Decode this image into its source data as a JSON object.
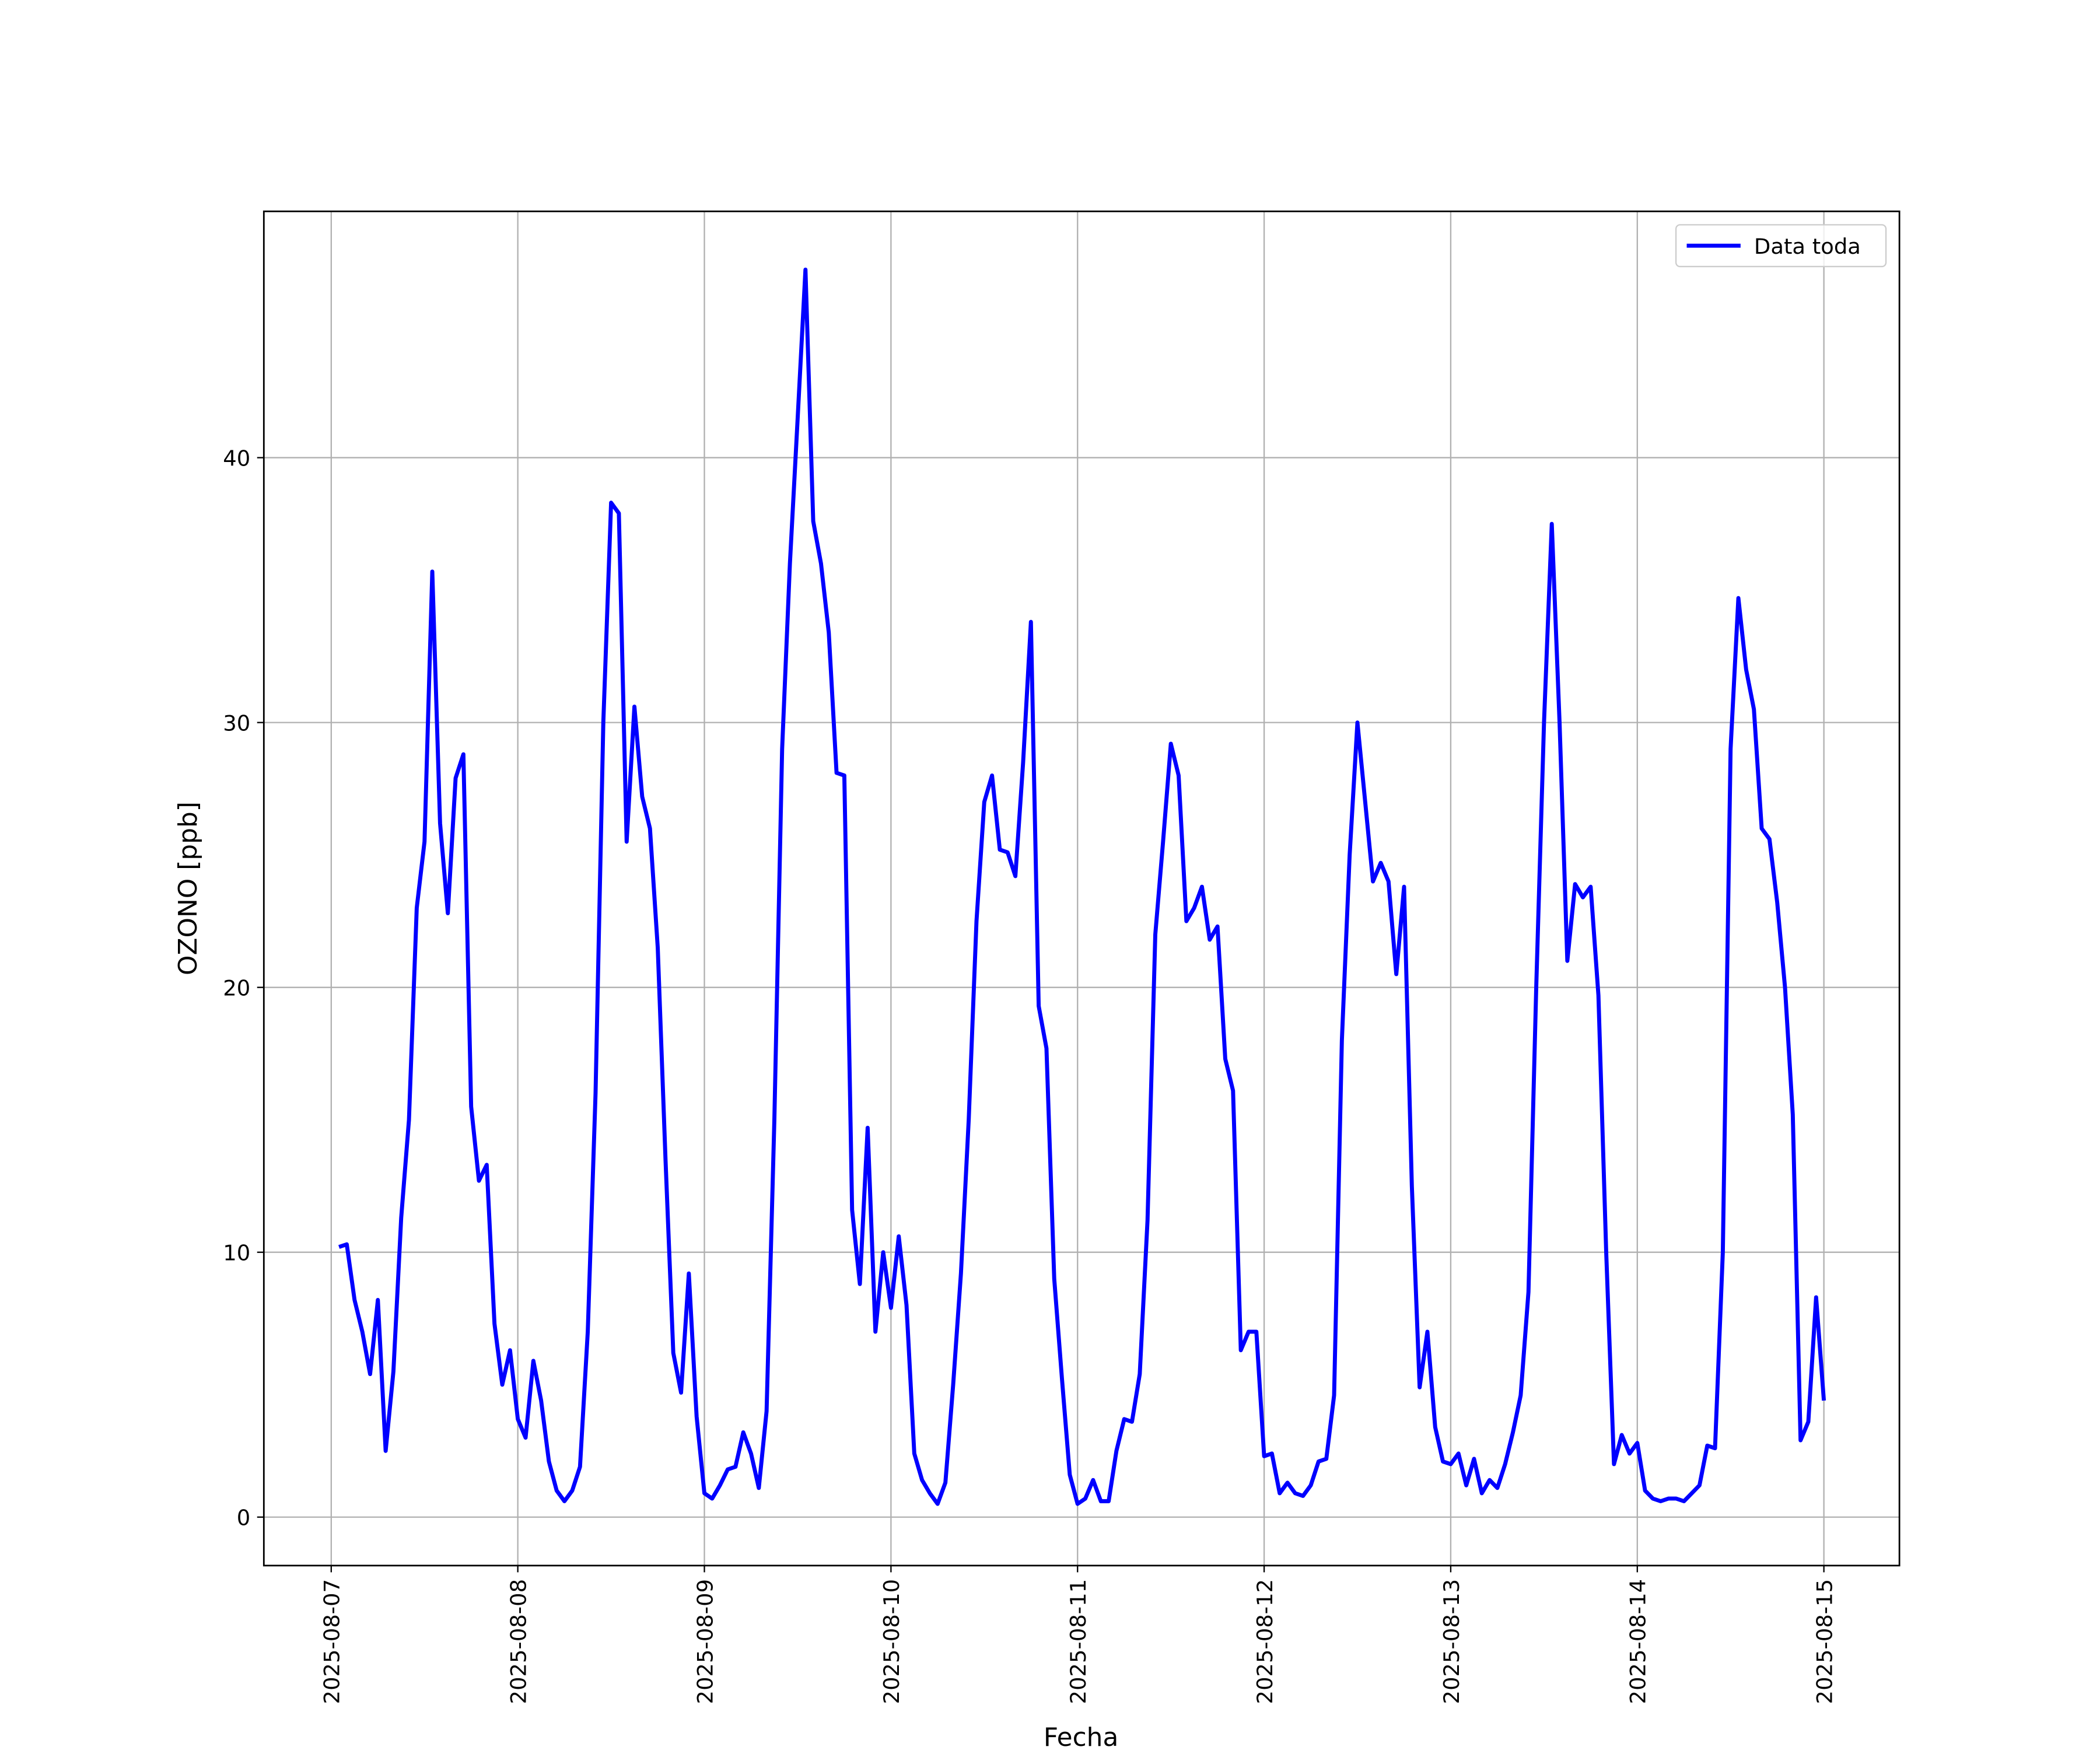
{
  "chart_data": {
    "type": "line",
    "xlabel": "Fecha",
    "ylabel": "OZONO [ppb]",
    "x": [
      "2025-08-07 01:00",
      "2025-08-07 02:00",
      "2025-08-07 03:00",
      "2025-08-07 04:00",
      "2025-08-07 05:00",
      "2025-08-07 06:00",
      "2025-08-07 07:00",
      "2025-08-07 08:00",
      "2025-08-07 09:00",
      "2025-08-07 10:00",
      "2025-08-07 11:00",
      "2025-08-07 12:00",
      "2025-08-07 13:00",
      "2025-08-07 14:00",
      "2025-08-07 15:00",
      "2025-08-07 16:00",
      "2025-08-07 17:00",
      "2025-08-07 18:00",
      "2025-08-07 19:00",
      "2025-08-07 20:00",
      "2025-08-07 21:00",
      "2025-08-07 22:00",
      "2025-08-07 23:00",
      "2025-08-08 00:00",
      "2025-08-08 01:00",
      "2025-08-08 02:00",
      "2025-08-08 03:00",
      "2025-08-08 04:00",
      "2025-08-08 05:00",
      "2025-08-08 06:00",
      "2025-08-08 07:00",
      "2025-08-08 08:00",
      "2025-08-08 09:00",
      "2025-08-08 10:00",
      "2025-08-08 11:00",
      "2025-08-08 12:00",
      "2025-08-08 13:00",
      "2025-08-08 14:00",
      "2025-08-08 15:00",
      "2025-08-08 16:00",
      "2025-08-08 17:00",
      "2025-08-08 18:00",
      "2025-08-08 19:00",
      "2025-08-08 20:00",
      "2025-08-08 21:00",
      "2025-08-08 22:00",
      "2025-08-08 23:00",
      "2025-08-09 00:00",
      "2025-08-09 01:00",
      "2025-08-09 02:00",
      "2025-08-09 03:00",
      "2025-08-09 04:00",
      "2025-08-09 05:00",
      "2025-08-09 06:00",
      "2025-08-09 07:00",
      "2025-08-09 08:00",
      "2025-08-09 09:00",
      "2025-08-09 10:00",
      "2025-08-09 11:00",
      "2025-08-09 12:00",
      "2025-08-09 13:00",
      "2025-08-09 14:00",
      "2025-08-09 15:00",
      "2025-08-09 16:00",
      "2025-08-09 17:00",
      "2025-08-09 18:00",
      "2025-08-09 19:00",
      "2025-08-09 20:00",
      "2025-08-09 21:00",
      "2025-08-09 22:00",
      "2025-08-09 23:00",
      "2025-08-10 00:00",
      "2025-08-10 01:00",
      "2025-08-10 02:00",
      "2025-08-10 03:00",
      "2025-08-10 04:00",
      "2025-08-10 05:00",
      "2025-08-10 06:00",
      "2025-08-10 07:00",
      "2025-08-10 08:00",
      "2025-08-10 09:00",
      "2025-08-10 10:00",
      "2025-08-10 11:00",
      "2025-08-10 12:00",
      "2025-08-10 13:00",
      "2025-08-10 14:00",
      "2025-08-10 15:00",
      "2025-08-10 16:00",
      "2025-08-10 17:00",
      "2025-08-10 18:00",
      "2025-08-10 19:00",
      "2025-08-10 20:00",
      "2025-08-10 21:00",
      "2025-08-10 22:00",
      "2025-08-10 23:00",
      "2025-08-11 00:00",
      "2025-08-11 01:00",
      "2025-08-11 02:00",
      "2025-08-11 03:00",
      "2025-08-11 04:00",
      "2025-08-11 05:00",
      "2025-08-11 06:00",
      "2025-08-11 07:00",
      "2025-08-11 08:00",
      "2025-08-11 09:00",
      "2025-08-11 10:00",
      "2025-08-11 11:00",
      "2025-08-11 12:00",
      "2025-08-11 13:00",
      "2025-08-11 14:00",
      "2025-08-11 15:00",
      "2025-08-11 16:00",
      "2025-08-11 17:00",
      "2025-08-11 18:00",
      "2025-08-11 19:00",
      "2025-08-11 20:00",
      "2025-08-11 21:00",
      "2025-08-11 22:00",
      "2025-08-11 23:00",
      "2025-08-12 00:00",
      "2025-08-12 01:00",
      "2025-08-12 02:00",
      "2025-08-12 03:00",
      "2025-08-12 04:00",
      "2025-08-12 05:00",
      "2025-08-12 06:00",
      "2025-08-12 07:00",
      "2025-08-12 08:00",
      "2025-08-12 09:00",
      "2025-08-12 10:00",
      "2025-08-12 11:00",
      "2025-08-12 12:00",
      "2025-08-12 13:00",
      "2025-08-12 14:00",
      "2025-08-12 15:00",
      "2025-08-12 16:00",
      "2025-08-12 17:00",
      "2025-08-12 18:00",
      "2025-08-12 19:00",
      "2025-08-12 20:00",
      "2025-08-12 21:00",
      "2025-08-12 22:00",
      "2025-08-12 23:00",
      "2025-08-13 00:00",
      "2025-08-13 01:00",
      "2025-08-13 02:00",
      "2025-08-13 03:00",
      "2025-08-13 04:00",
      "2025-08-13 05:00",
      "2025-08-13 06:00",
      "2025-08-13 07:00",
      "2025-08-13 08:00",
      "2025-08-13 09:00",
      "2025-08-13 10:00",
      "2025-08-13 11:00",
      "2025-08-13 12:00",
      "2025-08-13 13:00",
      "2025-08-13 14:00",
      "2025-08-13 15:00",
      "2025-08-13 16:00",
      "2025-08-13 17:00",
      "2025-08-13 18:00",
      "2025-08-13 19:00",
      "2025-08-13 20:00",
      "2025-08-13 21:00",
      "2025-08-13 22:00",
      "2025-08-13 23:00",
      "2025-08-14 00:00",
      "2025-08-14 01:00",
      "2025-08-14 02:00",
      "2025-08-14 03:00",
      "2025-08-14 04:00",
      "2025-08-14 05:00",
      "2025-08-14 06:00",
      "2025-08-14 07:00",
      "2025-08-14 08:00",
      "2025-08-14 09:00",
      "2025-08-14 10:00",
      "2025-08-14 11:00",
      "2025-08-14 12:00",
      "2025-08-14 13:00",
      "2025-08-14 14:00",
      "2025-08-14 15:00",
      "2025-08-14 16:00",
      "2025-08-14 17:00",
      "2025-08-14 18:00",
      "2025-08-14 19:00",
      "2025-08-14 20:00",
      "2025-08-14 21:00",
      "2025-08-14 22:00",
      "2025-08-14 23:00",
      "2025-08-15 00:00"
    ],
    "series": [
      {
        "name": "Data toda",
        "color": "#0000ff",
        "values": [
          10.2,
          10.3,
          8.2,
          7.0,
          5.4,
          8.2,
          2.5,
          5.5,
          11.3,
          15.0,
          23.0,
          25.5,
          35.7,
          26.2,
          22.8,
          27.9,
          28.8,
          15.5,
          12.7,
          13.3,
          7.3,
          5.0,
          6.3,
          3.7,
          3.0,
          5.9,
          4.4,
          2.1,
          1.0,
          0.6,
          1.0,
          1.9,
          7.0,
          16.0,
          30.0,
          38.3,
          37.9,
          25.5,
          30.6,
          27.2,
          26.0,
          21.5,
          13.5,
          6.2,
          4.7,
          9.2,
          3.8,
          0.9,
          0.7,
          1.2,
          1.8,
          1.9,
          3.2,
          2.4,
          1.1,
          4.0,
          15.0,
          29.0,
          36.0,
          41.5,
          47.1,
          37.6,
          36.0,
          33.4,
          28.1,
          28.0,
          11.6,
          8.8,
          14.7,
          7.0,
          10.0,
          7.9,
          10.6,
          8.0,
          2.4,
          1.4,
          0.9,
          0.5,
          1.3,
          5.0,
          9.2,
          15.0,
          22.5,
          27.0,
          28.0,
          25.2,
          25.1,
          24.2,
          28.5,
          33.8,
          19.3,
          17.7,
          9.0,
          5.2,
          1.6,
          0.5,
          0.7,
          1.4,
          0.6,
          0.6,
          2.5,
          3.7,
          3.6,
          5.4,
          11.2,
          22.0,
          25.5,
          29.2,
          28.0,
          22.5,
          23.0,
          23.8,
          21.8,
          22.3,
          17.3,
          16.1,
          6.3,
          7.0,
          7.0,
          2.3,
          2.4,
          0.9,
          1.3,
          0.9,
          0.8,
          1.2,
          2.1,
          2.2,
          4.6,
          18.0,
          25.0,
          30.0,
          27.0,
          24.0,
          24.7,
          24.0,
          20.5,
          23.8,
          12.5,
          4.9,
          7.0,
          3.4,
          2.1,
          2.0,
          2.4,
          1.2,
          2.2,
          0.9,
          1.4,
          1.1,
          2.0,
          3.2,
          4.6,
          8.5,
          20.0,
          30.0,
          37.5,
          30.0,
          21.0,
          23.9,
          23.4,
          23.8,
          19.7,
          10.0,
          2.0,
          3.1,
          2.4,
          2.8,
          1.0,
          0.7,
          0.6,
          0.7,
          0.7,
          0.6,
          0.9,
          1.2,
          2.7,
          2.6,
          10.0,
          29.0,
          34.7,
          32.0,
          30.5,
          26.0,
          25.6,
          23.2,
          20.0,
          15.2,
          2.9,
          3.6,
          8.3,
          4.4
        ]
      }
    ],
    "xlim": [
      "2025-08-06 15:20",
      "2025-08-15 09:43"
    ],
    "xticks": [
      "2025-08-07",
      "2025-08-08",
      "2025-08-09",
      "2025-08-10",
      "2025-08-11",
      "2025-08-12",
      "2025-08-13",
      "2025-08-14",
      "2025-08-15"
    ],
    "ylim": [
      -1.83,
      49.3
    ],
    "yticks": [
      0,
      10,
      20,
      30,
      40
    ],
    "grid": true,
    "legend": "upper right"
  }
}
